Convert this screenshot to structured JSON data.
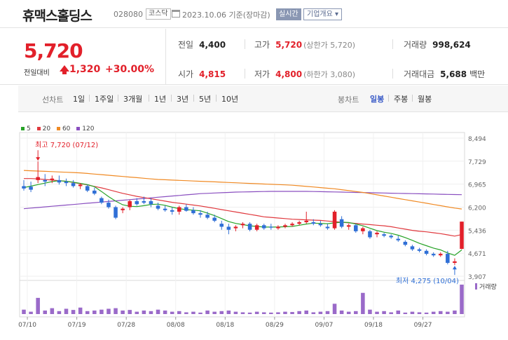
{
  "header": {
    "stock_name": "휴맥스홀딩스",
    "stock_code": "028080",
    "market": "코스닥",
    "date": "2023.10.06 기준(장마감)",
    "realtime_label": "실시간",
    "corp_info_label": "기업개요"
  },
  "quote": {
    "current_price": "5,720",
    "change_label": "전일대비",
    "change": "1,320",
    "change_pct": "+30.00%",
    "prev_close_label": "전일",
    "prev_close": "4,400",
    "high_label": "고가",
    "high": "5,720",
    "upper_limit": "(상한가 5,720)",
    "volume_label": "거래량",
    "volume": "998,624",
    "open_label": "시가",
    "open": "4,815",
    "low_label": "저가",
    "low": "4,800",
    "lower_limit": "(하한가 3,080)",
    "value_label": "거래대금",
    "value": "5,688",
    "value_unit": "백만"
  },
  "tabs": {
    "line_label": "선차트",
    "line": [
      "1일",
      "1주일",
      "3개월",
      "1년",
      "3년",
      "5년",
      "10년"
    ],
    "candle_label": "봉차트",
    "candle": [
      "일봉",
      "주봉",
      "월봉"
    ],
    "active_candle": "일봉"
  },
  "chart_data": {
    "type": "candlestick",
    "legend": [
      {
        "name": "5",
        "color": "#27a327"
      },
      {
        "name": "20",
        "color": "#e0393e"
      },
      {
        "name": "60",
        "color": "#f08a24"
      },
      {
        "name": "120",
        "color": "#8a4fc0"
      }
    ],
    "y_ticks": [
      "8,494",
      "7,729",
      "6,965",
      "6,200",
      "5,436",
      "4,671",
      "3,907"
    ],
    "y_range": [
      3907,
      8494
    ],
    "x_ticks": [
      "07/10",
      "07/19",
      "07/28",
      "08/08",
      "08/18",
      "08/29",
      "09/07",
      "09/18",
      "09/27"
    ],
    "max_annotation": "최고 7,720 (07/12)",
    "min_annotation": "최저 4,275 (10/04)",
    "volume_label": "거래량",
    "up_color": "#e2202a",
    "down_color": "#2f6fd6",
    "candles": [
      {
        "o": 6900,
        "h": 7100,
        "l": 6750,
        "c": 6820
      },
      {
        "o": 6880,
        "h": 7050,
        "l": 6700,
        "c": 6780
      },
      {
        "o": 7100,
        "h": 7720,
        "l": 7000,
        "c": 7200
      },
      {
        "o": 7100,
        "h": 7300,
        "l": 6900,
        "c": 7050
      },
      {
        "o": 7100,
        "h": 7250,
        "l": 7000,
        "c": 7150
      },
      {
        "o": 7100,
        "h": 7250,
        "l": 6950,
        "c": 7020
      },
      {
        "o": 7050,
        "h": 7150,
        "l": 6900,
        "c": 7000
      },
      {
        "o": 7000,
        "h": 7100,
        "l": 6850,
        "c": 6900
      },
      {
        "o": 6900,
        "h": 7000,
        "l": 6800,
        "c": 6950
      },
      {
        "o": 6900,
        "h": 6950,
        "l": 6700,
        "c": 6750
      },
      {
        "o": 6750,
        "h": 6850,
        "l": 6600,
        "c": 6650
      },
      {
        "o": 6500,
        "h": 6550,
        "l": 6300,
        "c": 6350
      },
      {
        "o": 6350,
        "h": 6450,
        "l": 6150,
        "c": 6200
      },
      {
        "o": 6200,
        "h": 6250,
        "l": 5800,
        "c": 5850
      },
      {
        "o": 6100,
        "h": 6200,
        "l": 6000,
        "c": 6150
      },
      {
        "o": 6200,
        "h": 6450,
        "l": 6100,
        "c": 6400
      },
      {
        "o": 6400,
        "h": 6500,
        "l": 6250,
        "c": 6300
      },
      {
        "o": 6400,
        "h": 6550,
        "l": 6300,
        "c": 6350
      },
      {
        "o": 6400,
        "h": 6500,
        "l": 6200,
        "c": 6300
      },
      {
        "o": 6250,
        "h": 6350,
        "l": 6100,
        "c": 6150
      },
      {
        "o": 6150,
        "h": 6250,
        "l": 6050,
        "c": 6100
      },
      {
        "o": 6100,
        "h": 6200,
        "l": 5950,
        "c": 6050
      },
      {
        "o": 6050,
        "h": 6250,
        "l": 5950,
        "c": 6200
      },
      {
        "o": 6200,
        "h": 6300,
        "l": 6050,
        "c": 6080
      },
      {
        "o": 6100,
        "h": 6200,
        "l": 5950,
        "c": 6000
      },
      {
        "o": 6000,
        "h": 6100,
        "l": 5850,
        "c": 5950
      },
      {
        "o": 5950,
        "h": 6050,
        "l": 5800,
        "c": 5850
      },
      {
        "o": 5850,
        "h": 5950,
        "l": 5700,
        "c": 5750
      },
      {
        "o": 5650,
        "h": 5750,
        "l": 5450,
        "c": 5550
      },
      {
        "o": 5550,
        "h": 5650,
        "l": 5300,
        "c": 5450
      },
      {
        "o": 5500,
        "h": 5600,
        "l": 5400,
        "c": 5550
      },
      {
        "o": 5600,
        "h": 5700,
        "l": 5500,
        "c": 5650
      },
      {
        "o": 5650,
        "h": 5700,
        "l": 5400,
        "c": 5450
      },
      {
        "o": 5450,
        "h": 5650,
        "l": 5400,
        "c": 5600
      },
      {
        "o": 5600,
        "h": 5650,
        "l": 5450,
        "c": 5500
      },
      {
        "o": 5550,
        "h": 5650,
        "l": 5450,
        "c": 5520
      },
      {
        "o": 5500,
        "h": 5600,
        "l": 5450,
        "c": 5550
      },
      {
        "o": 5550,
        "h": 5650,
        "l": 5500,
        "c": 5600
      },
      {
        "o": 5600,
        "h": 5700,
        "l": 5550,
        "c": 5650
      },
      {
        "o": 5650,
        "h": 5750,
        "l": 5600,
        "c": 5700
      },
      {
        "o": 5700,
        "h": 6050,
        "l": 5650,
        "c": 5750
      },
      {
        "o": 5700,
        "h": 5800,
        "l": 5600,
        "c": 5650
      },
      {
        "o": 5650,
        "h": 5750,
        "l": 5550,
        "c": 5600
      },
      {
        "o": 5550,
        "h": 5650,
        "l": 5450,
        "c": 5500
      },
      {
        "o": 5500,
        "h": 6100,
        "l": 5450,
        "c": 6050
      },
      {
        "o": 5800,
        "h": 5900,
        "l": 5500,
        "c": 5550
      },
      {
        "o": 5550,
        "h": 5650,
        "l": 5450,
        "c": 5600
      },
      {
        "o": 5600,
        "h": 5650,
        "l": 5350,
        "c": 5400
      },
      {
        "o": 5400,
        "h": 5550,
        "l": 5300,
        "c": 5500
      },
      {
        "o": 5400,
        "h": 5450,
        "l": 5150,
        "c": 5200
      },
      {
        "o": 5300,
        "h": 5400,
        "l": 5200,
        "c": 5350
      },
      {
        "o": 5300,
        "h": 5350,
        "l": 5200,
        "c": 5250
      },
      {
        "o": 5250,
        "h": 5300,
        "l": 5150,
        "c": 5200
      },
      {
        "o": 5150,
        "h": 5250,
        "l": 5050,
        "c": 5100
      },
      {
        "o": 5050,
        "h": 5100,
        "l": 4900,
        "c": 4950
      },
      {
        "o": 4900,
        "h": 4950,
        "l": 4750,
        "c": 4800
      },
      {
        "o": 4800,
        "h": 4850,
        "l": 4700,
        "c": 4750
      },
      {
        "o": 4750,
        "h": 4800,
        "l": 4600,
        "c": 4650
      },
      {
        "o": 4650,
        "h": 4700,
        "l": 4550,
        "c": 4600
      },
      {
        "o": 4600,
        "h": 4700,
        "l": 4550,
        "c": 4650
      },
      {
        "o": 4650,
        "h": 4750,
        "l": 4300,
        "c": 4350
      },
      {
        "o": 4350,
        "h": 4500,
        "l": 4275,
        "c": 4400
      },
      {
        "o": 4815,
        "h": 5720,
        "l": 4800,
        "c": 5720
      }
    ],
    "ma5": [
      6850,
      6900,
      6950,
      7000,
      7050,
      7080,
      7060,
      7030,
      6990,
      6950,
      6880,
      6720,
      6550,
      6400,
      6280,
      6230,
      6220,
      6250,
      6290,
      6300,
      6260,
      6200,
      6150,
      6120,
      6100,
      6080,
      6000,
      5920,
      5820,
      5720,
      5660,
      5620,
      5580,
      5560,
      5540,
      5540,
      5540,
      5550,
      5560,
      5600,
      5640,
      5670,
      5660,
      5650,
      5680,
      5700,
      5690,
      5640,
      5580,
      5500,
      5420,
      5370,
      5330,
      5270,
      5190,
      5100,
      5000,
      4920,
      4840,
      4780,
      4680,
      4600,
      4780
    ],
    "ma20": [
      7150,
      7150,
      7140,
      7120,
      7100,
      7080,
      7060,
      7020,
      6980,
      6940,
      6890,
      6840,
      6780,
      6720,
      6660,
      6610,
      6560,
      6520,
      6480,
      6440,
      6400,
      6360,
      6330,
      6300,
      6270,
      6240,
      6200,
      6160,
      6120,
      6080,
      6040,
      6000,
      5960,
      5920,
      5880,
      5860,
      5840,
      5820,
      5800,
      5790,
      5780,
      5770,
      5760,
      5740,
      5720,
      5700,
      5680,
      5660,
      5640,
      5620,
      5600,
      5580,
      5550,
      5510,
      5470,
      5430,
      5400,
      5380,
      5350,
      5320,
      5280,
      5240,
      5290
    ],
    "ma60": [
      7420,
      7410,
      7400,
      7390,
      7380,
      7370,
      7360,
      7350,
      7340,
      7320,
      7300,
      7280,
      7260,
      7240,
      7220,
      7200,
      7180,
      7160,
      7140,
      7120,
      7110,
      7100,
      7090,
      7080,
      7070,
      7060,
      7050,
      7040,
      7030,
      7020,
      7010,
      7000,
      6990,
      6980,
      6970,
      6960,
      6950,
      6940,
      6930,
      6910,
      6890,
      6870,
      6850,
      6830,
      6810,
      6780,
      6750,
      6720,
      6690,
      6650,
      6610,
      6570,
      6530,
      6490,
      6450,
      6410,
      6370,
      6330,
      6290,
      6250,
      6210,
      6170,
      6140
    ],
    "ma120": [
      6150,
      6170,
      6190,
      6210,
      6230,
      6250,
      6270,
      6290,
      6310,
      6330,
      6350,
      6370,
      6390,
      6410,
      6430,
      6450,
      6470,
      6490,
      6510,
      6530,
      6550,
      6570,
      6590,
      6610,
      6630,
      6650,
      6660,
      6670,
      6680,
      6690,
      6700,
      6705,
      6710,
      6715,
      6720,
      6725,
      6725,
      6725,
      6725,
      6725,
      6725,
      6720,
      6715,
      6710,
      6705,
      6700,
      6695,
      6690,
      6685,
      6680,
      6675,
      6670,
      6665,
      6660,
      6655,
      6650,
      6645,
      6640,
      6635,
      6630,
      6625,
      6620,
      6615
    ],
    "volumes": [
      0.15,
      0.08,
      0.55,
      0.12,
      0.2,
      0.1,
      0.18,
      0.14,
      0.22,
      0.1,
      0.12,
      0.15,
      0.18,
      0.2,
      0.12,
      0.14,
      0.08,
      0.12,
      0.1,
      0.15,
      0.12,
      0.08,
      0.1,
      0.06,
      0.08,
      0.05,
      0.12,
      0.08,
      0.1,
      0.12,
      0.08,
      0.06,
      0.05,
      0.08,
      0.06,
      0.05,
      0.06,
      0.08,
      0.07,
      0.1,
      0.12,
      0.06,
      0.08,
      0.1,
      0.35,
      0.12,
      0.08,
      0.1,
      0.72,
      0.15,
      0.08,
      0.1,
      0.06,
      0.12,
      0.05,
      0.08,
      0.06,
      0.05,
      0.08,
      0.1,
      0.08,
      0.12,
      1.0
    ]
  }
}
